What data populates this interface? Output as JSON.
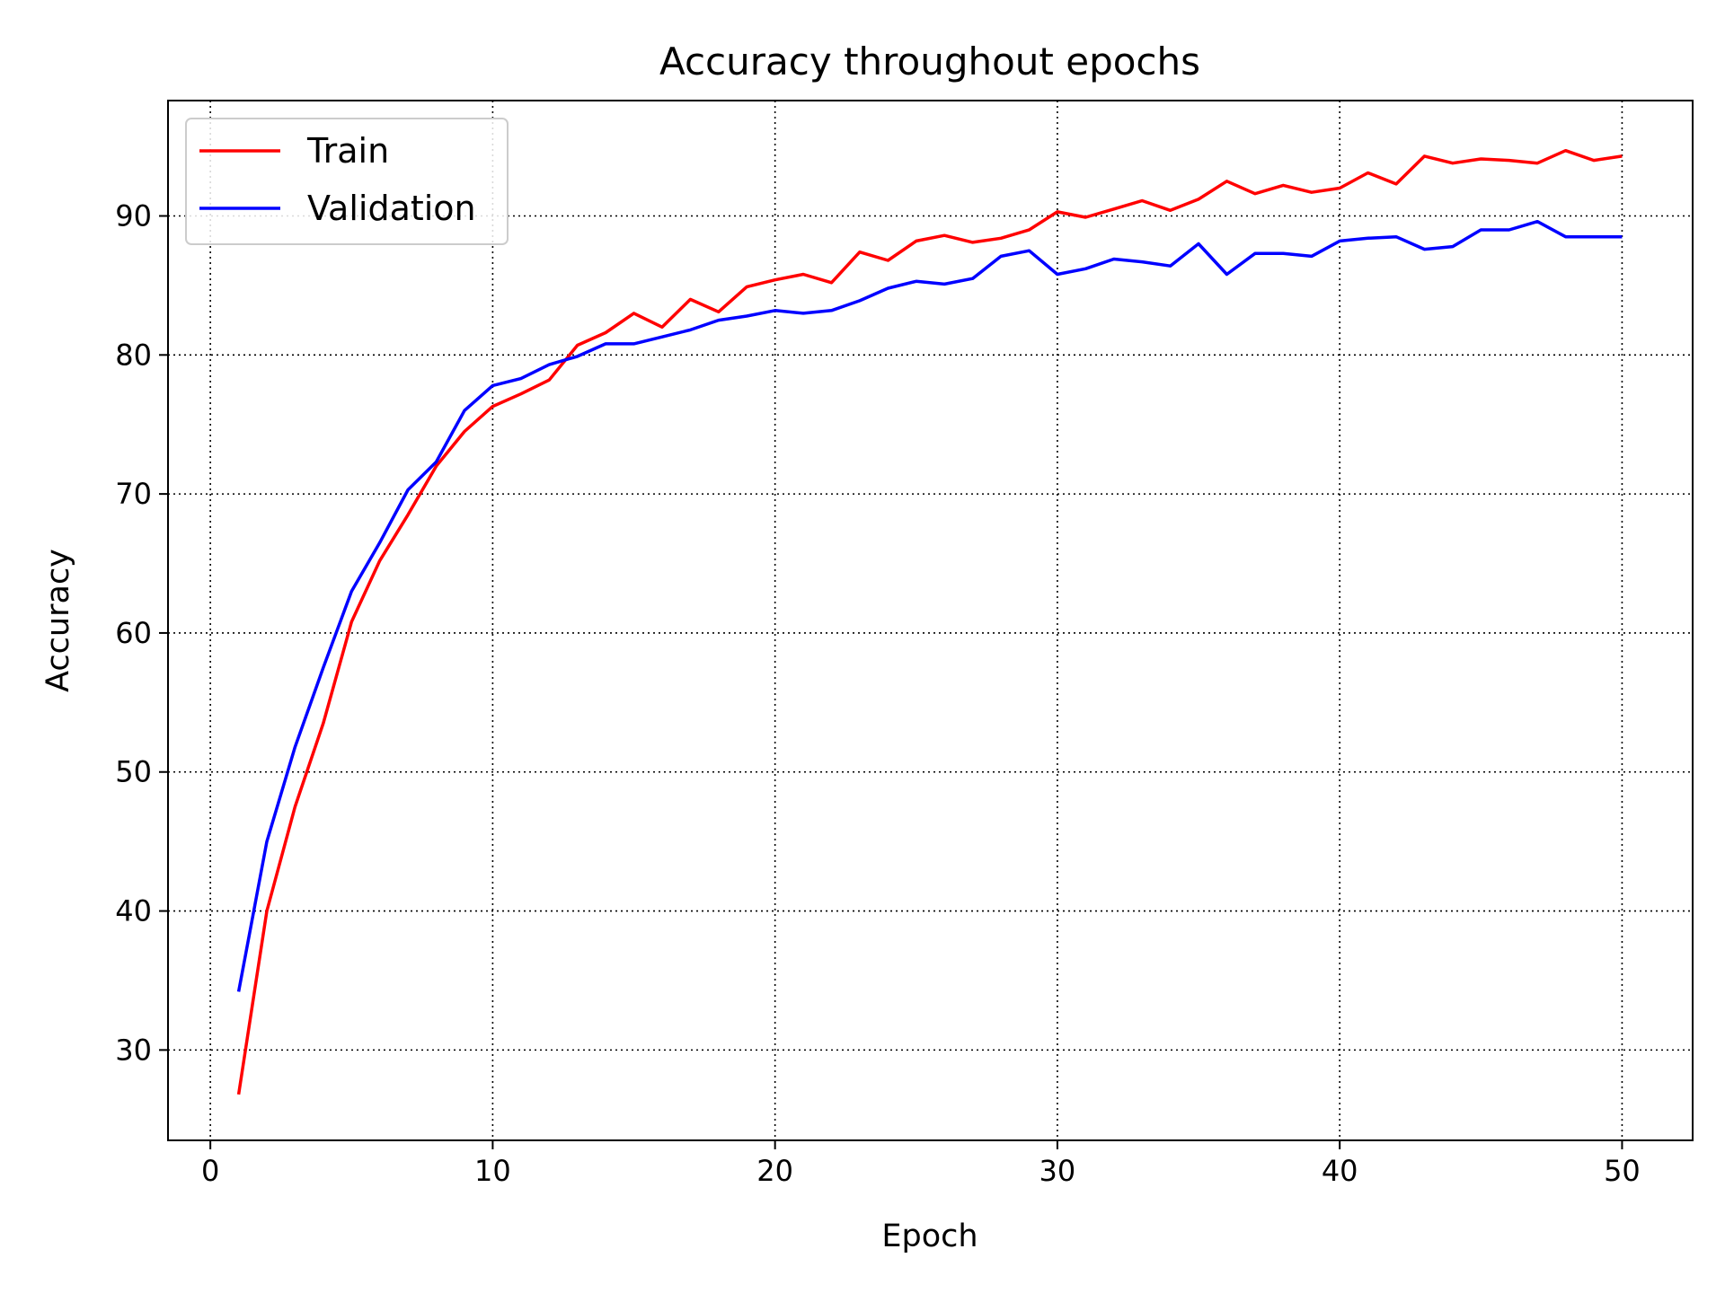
{
  "chart_data": {
    "type": "line",
    "title": "Accuracy throughout epochs",
    "xlabel": "Epoch",
    "ylabel": "Accuracy",
    "xlim": [
      -1.5,
      52.5
    ],
    "ylim": [
      23.5,
      98.3
    ],
    "xticks": [
      0,
      10,
      20,
      30,
      40,
      50
    ],
    "yticks": [
      30,
      40,
      50,
      60,
      70,
      80,
      90
    ],
    "grid": true,
    "legend_position": "top-left",
    "x": [
      1,
      2,
      3,
      4,
      5,
      6,
      7,
      8,
      9,
      10,
      11,
      12,
      13,
      14,
      15,
      16,
      17,
      18,
      19,
      20,
      21,
      22,
      23,
      24,
      25,
      26,
      27,
      28,
      29,
      30,
      31,
      32,
      33,
      34,
      35,
      36,
      37,
      38,
      39,
      40,
      41,
      42,
      43,
      44,
      45,
      46,
      47,
      48,
      49,
      50
    ],
    "series": [
      {
        "name": "Train",
        "color": "#ff0000",
        "values": [
          26.8,
          40.0,
          47.5,
          53.5,
          60.8,
          65.2,
          68.5,
          72.0,
          74.5,
          76.3,
          77.2,
          78.2,
          80.7,
          81.6,
          83.0,
          82.0,
          84.0,
          83.1,
          84.9,
          85.4,
          85.8,
          85.2,
          87.4,
          86.8,
          88.2,
          88.6,
          88.1,
          88.4,
          89.0,
          90.3,
          89.9,
          90.5,
          91.1,
          90.4,
          91.2,
          92.5,
          91.6,
          92.2,
          91.7,
          92.0,
          93.1,
          92.3,
          94.3,
          93.8,
          94.1,
          94.0,
          93.8,
          94.7,
          94.0,
          94.3
        ]
      },
      {
        "name": "Validation",
        "color": "#0000ff",
        "values": [
          34.2,
          45.0,
          51.8,
          57.5,
          63.0,
          66.5,
          70.3,
          72.3,
          76.0,
          77.8,
          78.3,
          79.3,
          79.9,
          80.8,
          80.8,
          81.3,
          81.8,
          82.5,
          82.8,
          83.2,
          83.0,
          83.2,
          83.9,
          84.8,
          85.3,
          85.1,
          85.5,
          87.1,
          87.5,
          85.8,
          86.2,
          86.9,
          86.7,
          86.4,
          88.0,
          85.8,
          87.3,
          87.3,
          87.1,
          88.2,
          88.4,
          88.5,
          87.6,
          87.8,
          89.0,
          89.0,
          89.6,
          88.5,
          88.5,
          88.5
        ]
      }
    ]
  }
}
